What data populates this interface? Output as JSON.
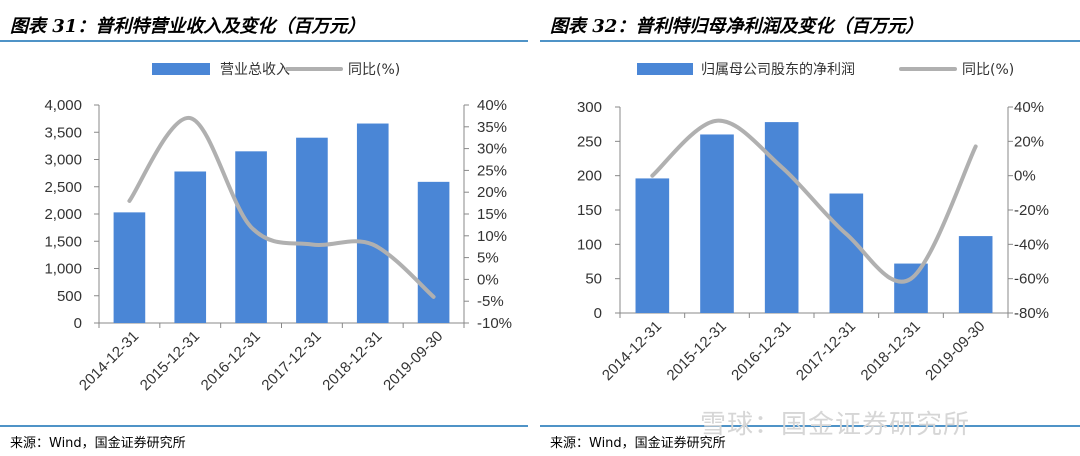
{
  "panels": [
    {
      "title": "图表 31：普利特营业收入及变化（百万元）",
      "source": "来源：Wind，国金证券研究所",
      "chart_data": {
        "type": "bar",
        "categories": [
          "2014-12-31",
          "2015-12-31",
          "2016-12-31",
          "2017-12-31",
          "2018-12-31",
          "2019-09-30"
        ],
        "series": [
          {
            "name": "营业总收入",
            "type": "bar",
            "axis": "left",
            "values": [
              2030,
              2780,
              3150,
              3400,
              3660,
              2590
            ]
          },
          {
            "name": "同比(%)",
            "type": "line",
            "axis": "right",
            "values": [
              18,
              37,
              12,
              8,
              8,
              -4
            ]
          }
        ],
        "y_left": {
          "min": 0,
          "max": 4000,
          "step": 500,
          "tick_labels": [
            "0",
            "500",
            "1,000",
            "1,500",
            "2,000",
            "2,500",
            "3,000",
            "3,500",
            "4,000"
          ]
        },
        "y_right": {
          "min": -10,
          "max": 40,
          "step": 5,
          "tick_labels": [
            "-10%",
            "-5%",
            "0%",
            "5%",
            "10%",
            "15%",
            "20%",
            "25%",
            "30%",
            "35%",
            "40%"
          ]
        },
        "legend_position": "top",
        "grid": false,
        "colors": {
          "bar": "#4a86d6",
          "line": "#b0b0b0"
        }
      }
    },
    {
      "title": "图表 32：普利特归母净利润及变化（百万元）",
      "source": "来源：Wind，国金证券研究所",
      "chart_data": {
        "type": "bar",
        "categories": [
          "2014-12-31",
          "2015-12-31",
          "2016-12-31",
          "2017-12-31",
          "2018-12-31",
          "2019-09-30"
        ],
        "series": [
          {
            "name": "归属母公司股东的净利润",
            "type": "bar",
            "axis": "left",
            "values": [
              196,
              260,
              278,
              174,
              72,
              112
            ]
          },
          {
            "name": "同比(%)",
            "type": "line",
            "axis": "right",
            "values": [
              0,
              32,
              5,
              -34,
              -60,
              17
            ]
          }
        ],
        "y_left": {
          "min": 0,
          "max": 300,
          "step": 50,
          "tick_labels": [
            "0",
            "50",
            "100",
            "150",
            "200",
            "250",
            "300"
          ]
        },
        "y_right": {
          "min": -80,
          "max": 40,
          "step": 20,
          "tick_labels": [
            "-80%",
            "-60%",
            "-40%",
            "-20%",
            "0%",
            "20%",
            "40%"
          ]
        },
        "legend_position": "top",
        "grid": false,
        "colors": {
          "bar": "#4a86d6",
          "line": "#b0b0b0"
        }
      }
    }
  ],
  "watermark": "雪球：国金证券研究所"
}
